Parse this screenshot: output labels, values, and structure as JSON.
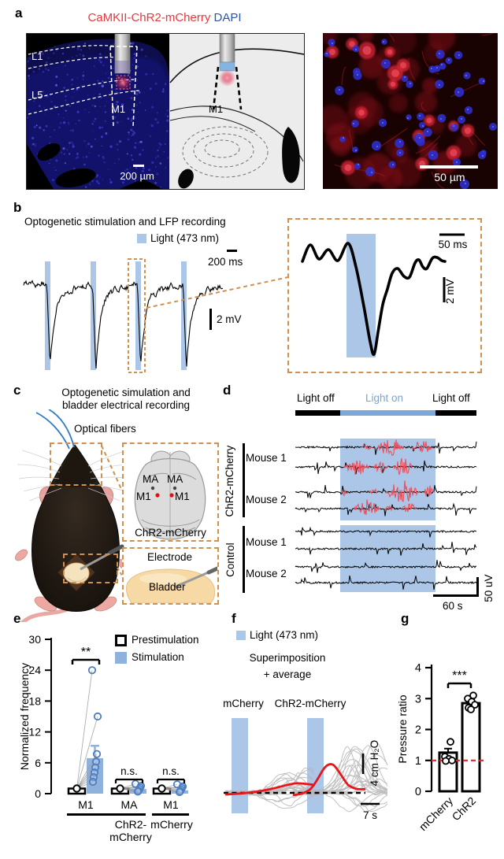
{
  "colors": {
    "light_blue_shading": "#abc6e6",
    "light_on_bar": "#7da7d9",
    "light_on_text": "#7ba3d6",
    "zoom_box_dash": "#cf9050",
    "title_red": "#e8383f",
    "dapi_blue": "#2b55a8",
    "burst_red": "#ee4f5c",
    "average_red": "#ed1c24",
    "reference_line_red": "#e8212a",
    "stim_point_blue": "#4d7ec2",
    "stim_bar_blue": "#8fb2dd"
  },
  "panels": {
    "a": {
      "label": "a",
      "title_red": "CaMKII-ChR2-mCherry",
      "title_blue": "DAPI",
      "layer1": "L1",
      "layer5": "L5",
      "m1_photo": "M1",
      "m1_schematic": "M1",
      "scale_left": "200 µm",
      "scale_right": "50 µm"
    },
    "b": {
      "label": "b",
      "title": "Optogenetic stimulation and LFP recording",
      "light_legend": "Light (473 nm)",
      "scale_time": "200 ms",
      "scale_voltage": "2 mV",
      "inset_scale_time": "50 ms",
      "inset_scale_voltage": "2 mV"
    },
    "c": {
      "label": "c",
      "title_line1": "Optogenetic simulation and",
      "title_line2": "bladder electrical recording",
      "optical_fibers": "Optical fibers",
      "ma_left": "MA",
      "ma_right": "MA",
      "m1_left": "M1",
      "m1_right": "M1",
      "virus": "ChR2-mCherry",
      "electrode": "Electrode",
      "bladder": "Bladder"
    },
    "d": {
      "label": "d",
      "light_off_left": "Light off",
      "light_on": "Light on",
      "light_off_right": "Light off",
      "group1": "ChR2-mCherry",
      "group1_mouse1": "Mouse 1",
      "group1_mouse2": "Mouse 2",
      "group2": "Control",
      "group2_mouse1": "Mouse 1",
      "group2_mouse2": "Mouse 2",
      "scale_time": "60 s",
      "scale_voltage": "50 uV"
    },
    "e": {
      "label": "e",
      "ylabel": "Normalized frequency",
      "legend_prestim": "Prestimulation",
      "legend_stim": "Stimulation"
    },
    "f": {
      "label": "f",
      "light_legend": "Light (473 nm)",
      "subtitle1": "Superimposition",
      "subtitle2": "+ average",
      "col_left": "mCherry",
      "col_right": "ChR2-mCherry",
      "scale_pressure": "4 cm H₂O",
      "scale_time": "7 s"
    },
    "g": {
      "label": "g",
      "ylabel": "Pressure ratio"
    }
  },
  "chart_data": [
    {
      "panel": "e",
      "type": "bar",
      "ylabel": "Normalized frequency",
      "ylim": [
        0,
        30
      ],
      "yticks": [
        0,
        6,
        12,
        18,
        24,
        30
      ],
      "legend": [
        "Prestimulation",
        "Stimulation"
      ],
      "legend_position": "top-right",
      "grid": false,
      "groups": [
        {
          "site": "M1",
          "cohort": "ChR2-mCherry",
          "prestim_mean": 1.0,
          "stim_mean": 6.9,
          "stim_err_high": 9.3,
          "stim_points": [
            24,
            15,
            7.7,
            6.2,
            5.1,
            4.1,
            3.2,
            2.3
          ],
          "significance": "**"
        },
        {
          "site": "MA",
          "cohort": "ChR2-mCherry",
          "prestim_mean": 1.0,
          "stim_mean": 0.9,
          "stim_points": [
            1.9,
            1.5,
            1.2,
            0.9,
            0.6,
            0.4
          ],
          "significance": "n.s."
        },
        {
          "site": "M1",
          "cohort": "mCherry",
          "prestim_mean": 1.0,
          "stim_mean": 0.65,
          "stim_points": [
            1.8,
            1.4,
            1.1,
            0.8,
            0.5,
            0.3
          ],
          "significance": "n.s."
        }
      ],
      "cohort_spans": [
        {
          "label": "ChR2-mCherry",
          "groups": [
            0,
            1
          ]
        },
        {
          "label": "mCherry",
          "groups": [
            2
          ]
        }
      ]
    },
    {
      "panel": "g",
      "type": "bar",
      "ylabel": "Pressure ratio",
      "ylim": [
        0,
        4
      ],
      "yticks": [
        0,
        1,
        2,
        3,
        4
      ],
      "categories": [
        "mCherry",
        "ChR2"
      ],
      "values": [
        1.25,
        2.85
      ],
      "err_high": [
        1.38,
        2.95
      ],
      "points": [
        [
          1.6,
          1.12,
          1.05,
          1.0,
          0.98
        ],
        [
          3.1,
          3.0,
          2.9,
          2.8,
          2.7,
          2.65
        ]
      ],
      "significance": "***",
      "reference_line": 1
    }
  ]
}
